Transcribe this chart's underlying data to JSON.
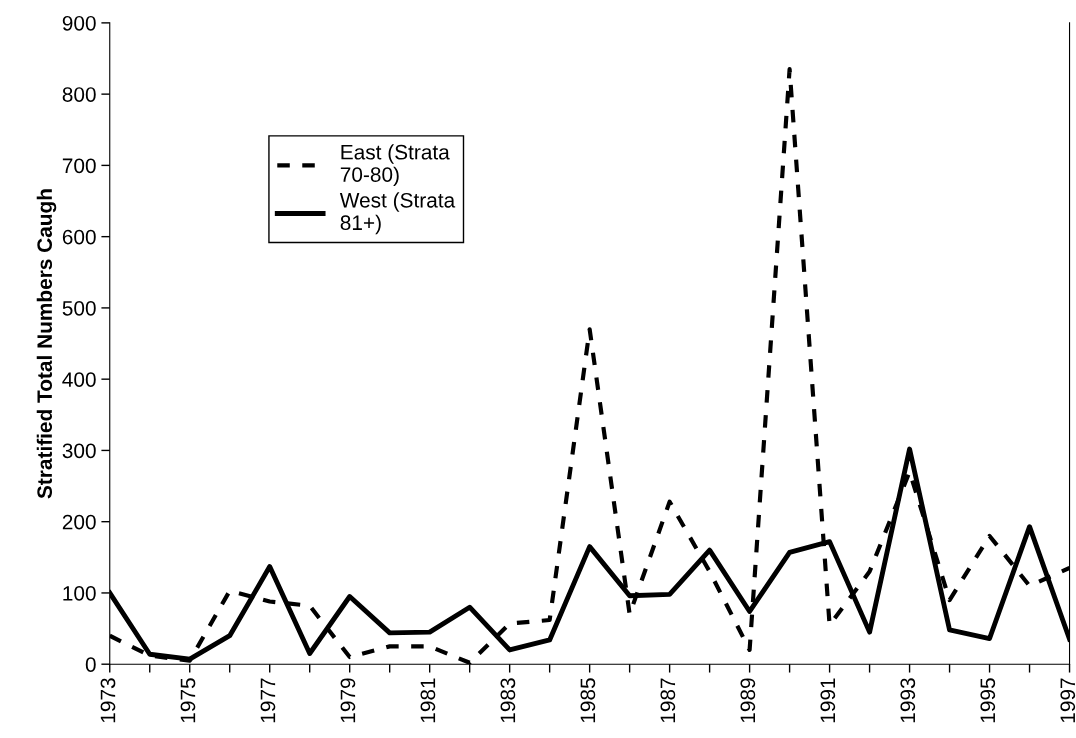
{
  "chart_data": {
    "type": "line",
    "ylabel": "Stratified Total Numbers Caugh",
    "x": [
      1973,
      1974,
      1975,
      1976,
      1977,
      1978,
      1979,
      1980,
      1981,
      1982,
      1983,
      1984,
      1985,
      1986,
      1987,
      1988,
      1989,
      1990,
      1991,
      1992,
      1993,
      1994,
      1995,
      1996,
      1997
    ],
    "series": [
      {
        "name": "East (Strata\n70-80)",
        "color": "#000000",
        "line_style": "dashed",
        "values": [
          40,
          12,
          5,
          103,
          88,
          82,
          10,
          25,
          25,
          2,
          57,
          62,
          470,
          70,
          228,
          130,
          20,
          835,
          55,
          130,
          270,
          90,
          180,
          110,
          135
        ]
      },
      {
        "name": "West (Strata\n81+)",
        "color": "#000000",
        "line_style": "solid",
        "values": [
          100,
          14,
          7,
          40,
          137,
          15,
          95,
          44,
          45,
          80,
          20,
          34,
          165,
          96,
          98,
          160,
          74,
          157,
          172,
          45,
          302,
          48,
          36,
          193,
          35
        ]
      }
    ],
    "xlim": [
      1973,
      1997
    ],
    "xticks": [
      1973,
      {
        "value": 1974,
        "label": null
      },
      1975,
      {
        "value": 1976,
        "label": null
      },
      1977,
      {
        "value": 1978,
        "label": null
      },
      1979,
      {
        "value": 1980,
        "label": null
      },
      1981,
      {
        "value": 1982,
        "label": null
      },
      1983,
      {
        "value": 1984,
        "label": null
      },
      1985,
      {
        "value": 1986,
        "label": null
      },
      1987,
      {
        "value": 1988,
        "label": null
      },
      1989,
      {
        "value": 1990,
        "label": null
      },
      1991,
      {
        "value": 1992,
        "label": null
      },
      1993,
      {
        "value": 1994,
        "label": null
      },
      1995,
      {
        "value": 1996,
        "label": null
      },
      1997
    ],
    "ylim": [
      0,
      900
    ],
    "yticks": [
      0,
      100,
      200,
      300,
      400,
      500,
      600,
      700,
      800,
      900
    ],
    "grid": false,
    "legend": "top left"
  }
}
